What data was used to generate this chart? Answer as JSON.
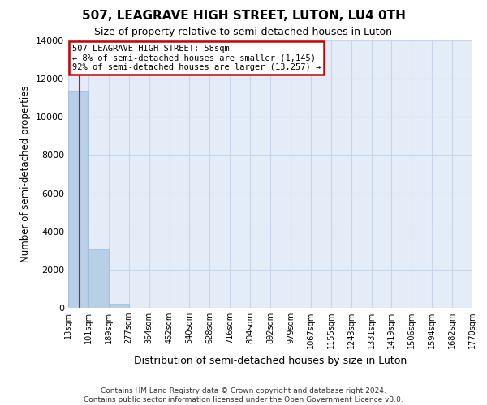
{
  "title": "507, LEAGRAVE HIGH STREET, LUTON, LU4 0TH",
  "subtitle": "Size of property relative to semi-detached houses in Luton",
  "xlabel": "Distribution of semi-detached houses by size in Luton",
  "ylabel": "Number of semi-detached properties",
  "categories": [
    "13sqm",
    "101sqm",
    "189sqm",
    "277sqm",
    "364sqm",
    "452sqm",
    "540sqm",
    "628sqm",
    "716sqm",
    "804sqm",
    "892sqm",
    "979sqm",
    "1067sqm",
    "1155sqm",
    "1243sqm",
    "1331sqm",
    "1419sqm",
    "1506sqm",
    "1594sqm",
    "1682sqm",
    "1770sqm"
  ],
  "bar_values": [
    11350,
    3050,
    200,
    0,
    0,
    0,
    0,
    0,
    0,
    0,
    0,
    0,
    0,
    0,
    0,
    0,
    0,
    0,
    0,
    0
  ],
  "bar_color": "#b8cfe8",
  "bar_edge_color": "#9ab8d8",
  "grid_color": "#c8d4e8",
  "background_color": "#e4ecf7",
  "ylim_max": 14000,
  "yticks": [
    0,
    2000,
    4000,
    6000,
    8000,
    10000,
    12000,
    14000
  ],
  "red_line_x": 0.58,
  "annotation_text": "507 LEAGRAVE HIGH STREET: 58sqm\n← 8% of semi-detached houses are smaller (1,145)\n92% of semi-detached houses are larger (13,257) →",
  "annotation_box_facecolor": "#ffffff",
  "annotation_box_edgecolor": "#cc0000",
  "footer_line1": "Contains HM Land Registry data © Crown copyright and database right 2024.",
  "footer_line2": "Contains public sector information licensed under the Open Government Licence v3.0."
}
